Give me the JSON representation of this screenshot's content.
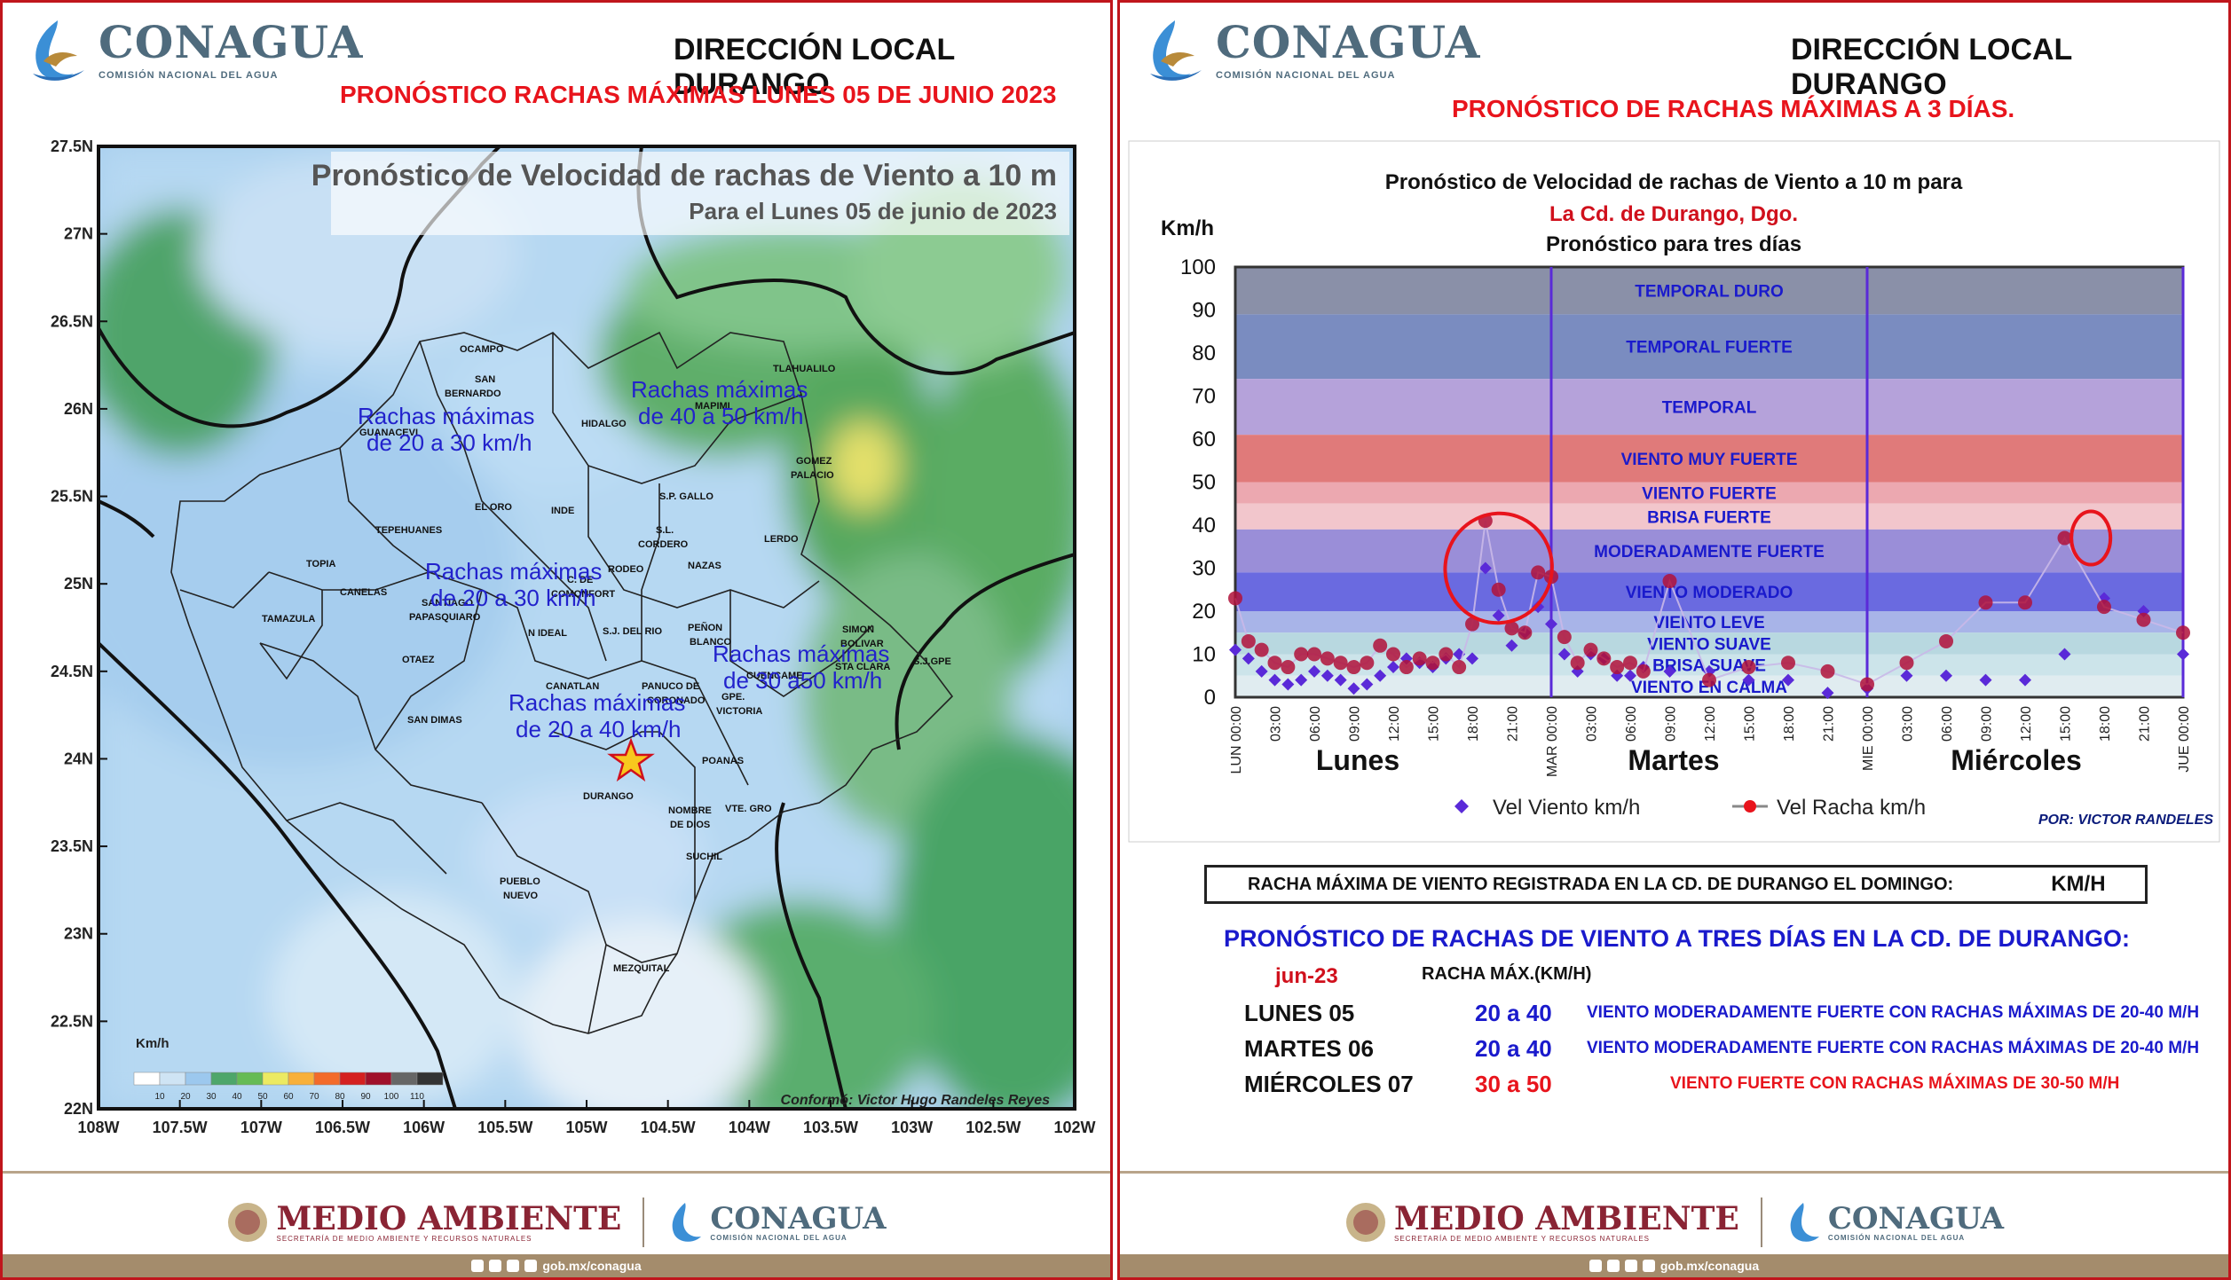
{
  "left_panel": {
    "logo": {
      "name": "CONAGUA",
      "subtitle": "COMISIÓN NACIONAL DEL AGUA"
    },
    "header_title": "DIRECCIÓN LOCAL DURANGO",
    "header_subtitle": "PRONÓSTICO RACHAS MÁXIMAS LUNES 05 DE JUNIO 2023",
    "map": {
      "title": "Pronóstico de Velocidad de rachas de Viento a 10 m",
      "subtitle": "Para el Lunes 05 de junio de 2023",
      "credit": "Conformó: Victor Hugo Randeles Reyes",
      "lat_labels": [
        "27.5N",
        "27N",
        "26.5N",
        "26N",
        "25.5N",
        "25N",
        "24.5N",
        "24N",
        "23.5N",
        "23N",
        "22.5N",
        "22N"
      ],
      "lon_labels": [
        "108W",
        "107.5W",
        "107W",
        "106.5W",
        "106W",
        "105.5W",
        "105W",
        "104.5W",
        "104W",
        "103.5W",
        "103W",
        "102.5W",
        "102W"
      ],
      "legend_unit": "Km/h",
      "legend_values": [
        "10",
        "20",
        "30",
        "40",
        "50",
        "60",
        "70",
        "80",
        "90",
        "100",
        "110"
      ],
      "legend_colors": [
        "#ffffff",
        "#cfe4f4",
        "#9cc8ee",
        "#4ea66a",
        "#66bb55",
        "#ecea62",
        "#f8b03a",
        "#f36b2a",
        "#d42020",
        "#a0102a",
        "#666666",
        "#333333"
      ],
      "zones": [
        {
          "line1": "Rachas máximas",
          "line2": "de 20 a 30 km/h"
        },
        {
          "line1": "Rachas máximas",
          "line2": "de 40 a 50 km/h"
        },
        {
          "line1": "Rachas máximas",
          "line2": "de 20 a 30 km/h"
        },
        {
          "line1": "Rachas máximas",
          "line2": "de 30 a50 km/h"
        },
        {
          "line1": "Rachas máximas",
          "line2": "de 20 a 40 km/h"
        }
      ],
      "municipios": [
        "OCAMPO",
        "SAN",
        "BERNARDO",
        "GUANACEVI",
        "TLAHUALILO",
        "MAPIMI",
        "HIDALGO",
        "GOMEZ",
        "PALACIO",
        "S.P. GALLO",
        "EL ORO",
        "INDE",
        "TEPEHUANES",
        "S.L.",
        "CORDERO",
        "LERDO",
        "TOPIA",
        "RODEO",
        "NAZAS",
        "CANELAS",
        "C. DE",
        "COMONFORT",
        "TAMAZULA",
        "SANTIAGO",
        "PAPASQUIARO",
        "N IDEAL",
        "S.J. DEL RIO",
        "PEÑON",
        "BLANCO",
        "SIMON",
        "BOLIVAR",
        "STA CLARA",
        "S.J.GPE",
        "OTAEZ",
        "CANATLAN",
        "PANUCO DE",
        "CORONADO",
        "CUENCAME",
        "GPE.",
        "VICTORIA",
        "SAN DIMAS",
        "POANAS",
        "DURANGO",
        "NOMBRE",
        "DE DIOS",
        "VTE. GRO",
        "SUCHIL",
        "PUEBLO",
        "NUEVO",
        "MEZQUITAL"
      ]
    }
  },
  "right_panel": {
    "logo": {
      "name": "CONAGUA",
      "subtitle": "COMISIÓN NACIONAL DEL AGUA"
    },
    "header_title": "DIRECCIÓN LOCAL DURANGO",
    "header_subtitle": "PRONÓSTICO DE RACHAS MÁXIMAS A 3 DÍAS.",
    "credit": "POR: VICTOR RANDELES",
    "record_label": "RACHA MÁXIMA DE VIENTO REGISTRADA EN LA CD. DE DURANGO EL DOMINGO:",
    "record_unit": "KM/H",
    "forecast_title": "PRONÓSTICO DE RACHAS DE VIENTO A TRES DÍAS EN LA CD. DE DURANGO:",
    "month": "jun-23",
    "col_header": "RACHA MÁX.(KM/H)",
    "rows": [
      {
        "day": "LUNES 05",
        "range": "20 a 40",
        "desc": "VIENTO  MODERADAMENTE FUERTE CON RACHAS MÁXIMAS DE 20-40 M/H",
        "color": "#1a1acc"
      },
      {
        "day": "MARTES 06",
        "range": "20 a 40",
        "desc": "VIENTO  MODERADAMENTE FUERTE CON RACHAS MÁXIMAS DE 20-40 M/H",
        "color": "#1a1acc"
      },
      {
        "day": "MIÉRCOLES 07",
        "range": "30 a 50",
        "desc": "VIENTO  FUERTE CON RACHAS MÁXIMAS DE 30-50 M/H",
        "color": "#e8141c"
      }
    ]
  },
  "footer": {
    "brand1": "MEDIO AMBIENTE",
    "brand1_sub": "SECRETARÍA DE MEDIO AMBIENTE Y RECURSOS NATURALES",
    "brand2": "CONAGUA",
    "brand2_sub": "COMISIÓN NACIONAL DEL AGUA",
    "url": "gob.mx/conagua"
  },
  "chart_data": {
    "type": "scatter",
    "title": "Pronóstico de Velocidad de rachas de Viento a 10 m para",
    "subtitle": "La Cd. de Durango, Dgo.",
    "subtitle2": "Pronóstico para tres días",
    "ylabel": "Km/h",
    "ylim": [
      0,
      100
    ],
    "yticks": [
      0,
      10,
      20,
      30,
      40,
      50,
      60,
      70,
      80,
      90,
      100
    ],
    "xlim": [
      0,
      72
    ],
    "x_ticks": [
      "LUN 00:00",
      "03:00",
      "06:00",
      "09:00",
      "12:00",
      "15:00",
      "18:00",
      "21:00",
      "MAR 00:00",
      "03:00",
      "06:00",
      "09:00",
      "12:00",
      "15:00",
      "18:00",
      "21:00",
      "MIE 00:00",
      "03:00",
      "06:00",
      "09:00",
      "12:00",
      "15:00",
      "18:00",
      "21:00",
      "JUE 00:00"
    ],
    "day_labels": [
      {
        "label": "Lunes",
        "x": 12
      },
      {
        "label": "Martes",
        "x": 36
      },
      {
        "label": "Miércoles",
        "x": 60
      }
    ],
    "bands": [
      {
        "name": "TEMPORAL DURO",
        "from": 89,
        "to": 100,
        "color": "#8a90a8"
      },
      {
        "name": "TEMPORAL FUERTE",
        "from": 74,
        "to": 89,
        "color": "#7a8cc0"
      },
      {
        "name": "TEMPORAL",
        "from": 61,
        "to": 74,
        "color": "#b5a2da"
      },
      {
        "name": "VIENTO MUY FUERTE",
        "from": 50,
        "to": 61,
        "color": "#e07a7a"
      },
      {
        "name": "VIENTO FUERTE",
        "from": 45,
        "to": 50,
        "color": "#eca8b0"
      },
      {
        "name": "BRISA FUERTE",
        "from": 39,
        "to": 45,
        "color": "#f2c6cc"
      },
      {
        "name": "MODERADAMENTE FUERTE",
        "from": 29,
        "to": 39,
        "color": "#9a8ed8"
      },
      {
        "name": "VIENTO MODERADO",
        "from": 20,
        "to": 29,
        "color": "#6a6ae0"
      },
      {
        "name": "VIENTO LEVE",
        "from": 15,
        "to": 20,
        "color": "#a8b4e8"
      },
      {
        "name": "VIENTO SUAVE",
        "from": 10,
        "to": 15,
        "color": "#b8d8e0"
      },
      {
        "name": "BRISA SUAVE",
        "from": 5,
        "to": 10,
        "color": "#cce4ea"
      },
      {
        "name": "VIENTO EN CALMA",
        "from": 0,
        "to": 5,
        "color": "#e0ecf0"
      }
    ],
    "series": [
      {
        "name": "Vel Viento km/h",
        "marker": "diamond",
        "color": "#5a2ad8",
        "x": [
          0,
          1,
          2,
          3,
          4,
          5,
          6,
          7,
          8,
          9,
          10,
          11,
          12,
          13,
          14,
          15,
          16,
          17,
          18,
          19,
          20,
          21,
          22,
          23,
          24,
          25,
          26,
          27,
          28,
          29,
          30,
          31,
          33,
          36,
          39,
          42,
          45,
          48,
          51,
          54,
          57,
          60,
          63,
          66,
          69,
          72
        ],
        "y": [
          11,
          9,
          6,
          4,
          3,
          4,
          6,
          5,
          4,
          2,
          3,
          5,
          7,
          9,
          8,
          7,
          9,
          10,
          9,
          30,
          19,
          12,
          15,
          21,
          17,
          10,
          6,
          10,
          9,
          5,
          5,
          7,
          6,
          6,
          4,
          4,
          1,
          2,
          5,
          5,
          4,
          4,
          10,
          23,
          20,
          10
        ]
      },
      {
        "name": "Vel Racha km/h",
        "marker": "circle",
        "color": "#b0123a",
        "x": [
          0,
          1,
          2,
          3,
          4,
          5,
          6,
          7,
          8,
          9,
          10,
          11,
          12,
          13,
          14,
          15,
          16,
          17,
          18,
          19,
          20,
          21,
          22,
          23,
          24,
          25,
          26,
          27,
          28,
          29,
          30,
          31,
          33,
          36,
          39,
          42,
          45,
          48,
          51,
          54,
          57,
          60,
          63,
          66,
          69,
          72
        ],
        "y": [
          23,
          13,
          11,
          8,
          7,
          10,
          10,
          9,
          8,
          7,
          8,
          12,
          10,
          7,
          9,
          8,
          10,
          7,
          17,
          41,
          25,
          16,
          15,
          29,
          28,
          14,
          8,
          11,
          9,
          7,
          8,
          6,
          27,
          4,
          7,
          8,
          6,
          3,
          8,
          13,
          22,
          22,
          37,
          21,
          18,
          15
        ]
      }
    ],
    "highlight_circles": [
      {
        "x": 20,
        "y": 30
      },
      {
        "x": 65,
        "y": 37
      }
    ]
  }
}
